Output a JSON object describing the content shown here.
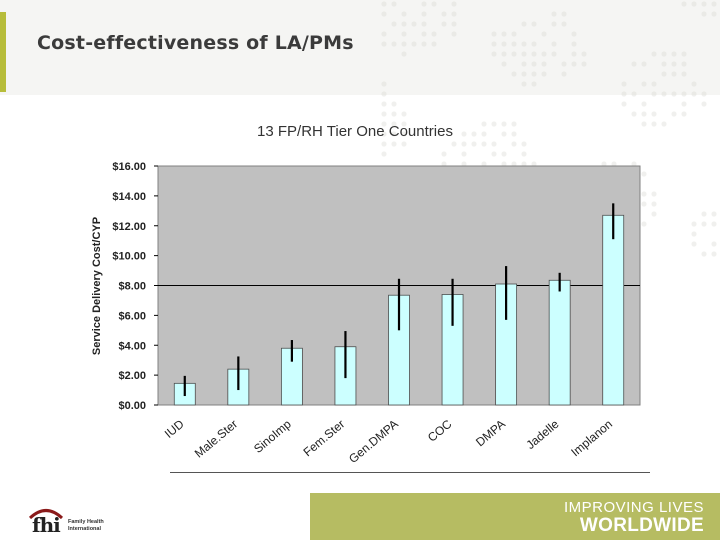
{
  "slide": {
    "title": "Cost-effectiveness of LA/PMs",
    "footer_org": "Family Health International",
    "logo_text": "fhi",
    "tagline_line1": "IMPROVING LIVES",
    "tagline_line2": "WORLDWIDE"
  },
  "colors": {
    "bar_fill": "#ccffff",
    "bar_stroke": "#4d4d4d",
    "plot_bg": "#c0c0c0",
    "error_bar": "#000000",
    "accent": "#b7bd3a",
    "footer_band": "#b6bc62"
  },
  "chart_data": {
    "type": "bar",
    "title": "13 FP/RH Tier One Countries",
    "xlabel": "",
    "ylabel": "Service Delivery Cost/CYP",
    "categories": [
      "IUD",
      "Male.Ster",
      "SinoImp",
      "Fem.Ster",
      "Gen.DMPA",
      "COC",
      "DMPA",
      "Jadelle",
      "Implanon"
    ],
    "values": [
      1.45,
      2.4,
      3.8,
      3.9,
      7.35,
      7.4,
      8.1,
      8.35,
      12.7
    ],
    "error_low": [
      0.6,
      1.0,
      2.9,
      1.8,
      5.0,
      5.3,
      5.7,
      7.6,
      11.1
    ],
    "error_high": [
      1.95,
      3.25,
      4.35,
      4.95,
      8.45,
      8.45,
      9.3,
      8.85,
      13.5
    ],
    "ylim": [
      0,
      16
    ],
    "yticks": [
      "$0.00",
      "$2.00",
      "$4.00",
      "$6.00",
      "$8.00",
      "$10.00",
      "$12.00",
      "$14.00",
      "$16.00"
    ],
    "reference_line": 8,
    "grid": false,
    "legend": "none"
  }
}
